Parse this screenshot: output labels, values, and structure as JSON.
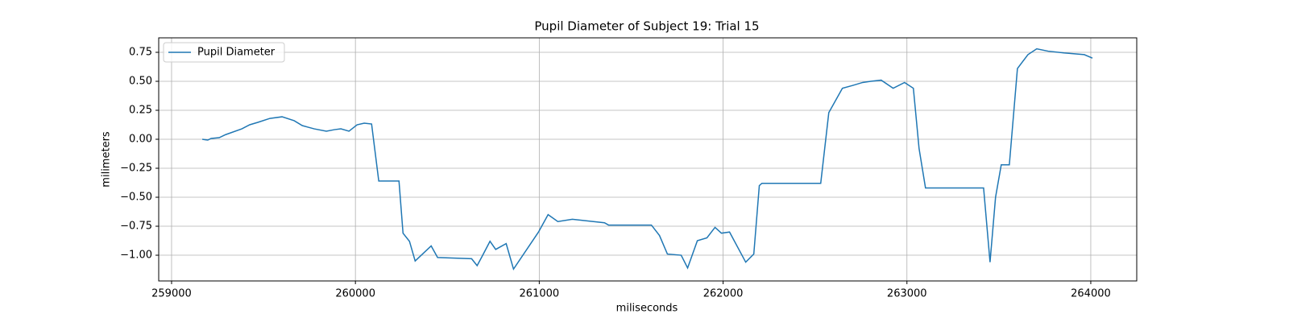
{
  "chart_data": {
    "type": "line",
    "title": "Pupil Diameter of Subject 19: Trial 15",
    "x_label": "miliseconds",
    "y_label": "milimeters",
    "xlim": [
      258930,
      264250
    ],
    "ylim": [
      -1.222,
      0.875
    ],
    "xticks": [
      259000,
      260000,
      261000,
      262000,
      263000,
      264000
    ],
    "yticks": [
      0.75,
      {
        "value": 0.5,
        "label": "0.50"
      },
      0.25,
      {
        "value": 0,
        "label": "0.00"
      },
      {
        "value": -0.25,
        "label": "−0.25"
      },
      {
        "value": -0.5,
        "label": "−0.50"
      },
      {
        "value": -0.75,
        "label": "−0.75"
      },
      {
        "value": -1.0,
        "label": "−1.00"
      }
    ],
    "grid": true,
    "legend": "upper left",
    "x": [
      259167,
      259197,
      259215,
      259259,
      259294,
      259382,
      259425,
      259469,
      259535,
      259601,
      259667,
      259711,
      259776,
      259842,
      259886,
      259921,
      259965,
      260009,
      260048,
      260088,
      260105,
      260127,
      260237,
      260259,
      260294,
      260325,
      260412,
      260447,
      260632,
      260662,
      260689,
      260732,
      260763,
      260820,
      260860,
      260996,
      261048,
      261101,
      261180,
      261355,
      261377,
      261610,
      261654,
      261697,
      261772,
      261807,
      261860,
      261912,
      261956,
      261991,
      262035,
      262123,
      262167,
      262197,
      262211,
      262531,
      262575,
      262649,
      262706,
      262759,
      262803,
      262860,
      262925,
      262987,
      263035,
      263066,
      263101,
      263417,
      263452,
      263482,
      263513,
      263557,
      263601,
      263658,
      263706,
      263768,
      263855,
      263965,
      264009
    ],
    "series": [
      {
        "name": "Pupil Diameter",
        "color": "#1f77b4",
        "values": [
          0.0,
          -0.007,
          0.007,
          0.014,
          0.04,
          0.09,
          0.125,
          0.146,
          0.18,
          0.194,
          0.16,
          0.118,
          0.09,
          0.07,
          0.083,
          0.09,
          0.07,
          0.125,
          0.139,
          0.132,
          -0.083,
          -0.36,
          -0.36,
          -0.81,
          -0.88,
          -1.05,
          -0.92,
          -1.02,
          -1.03,
          -1.09,
          -1.01,
          -0.88,
          -0.95,
          -0.9,
          -1.12,
          -0.8,
          -0.65,
          -0.71,
          -0.69,
          -0.72,
          -0.74,
          -0.74,
          -0.83,
          -0.99,
          -1.0,
          -1.11,
          -0.875,
          -0.85,
          -0.76,
          -0.81,
          -0.8,
          -1.06,
          -0.99,
          -0.4,
          -0.38,
          -0.38,
          0.23,
          0.44,
          0.465,
          0.49,
          0.5,
          0.51,
          0.44,
          0.49,
          0.44,
          -0.08,
          -0.42,
          -0.42,
          -1.06,
          -0.5,
          -0.22,
          -0.22,
          0.61,
          0.73,
          0.78,
          0.76,
          0.745,
          0.73,
          0.7
        ]
      }
    ]
  }
}
